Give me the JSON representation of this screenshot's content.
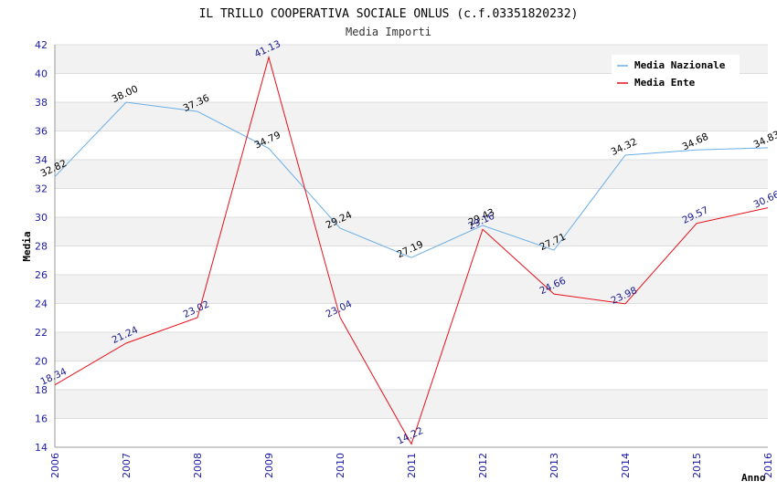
{
  "chart_data": {
    "type": "line",
    "title": "IL TRILLO COOPERATIVA SOCIALE ONLUS (c.f.03351820232)",
    "subtitle": "Media Importi",
    "xlabel": "Anno",
    "ylabel": "Media",
    "x": [
      "2006",
      "2007",
      "2008",
      "2009",
      "2010",
      "2011",
      "2012",
      "2013",
      "2014",
      "2015",
      "2016"
    ],
    "ylim": [
      14,
      42
    ],
    "yticks": [
      "14",
      "16",
      "18",
      "20",
      "22",
      "24",
      "26",
      "28",
      "30",
      "32",
      "34",
      "36",
      "38",
      "40",
      "42"
    ],
    "legend_position": "top-right",
    "series": [
      {
        "name": "Media Nazionale",
        "color": "#6aaee8",
        "values": [
          32.82,
          38.0,
          37.36,
          34.79,
          29.24,
          27.19,
          29.43,
          27.71,
          34.32,
          34.68,
          34.83
        ],
        "labels": [
          "32.82",
          "38.00",
          "37.36",
          "34.79",
          "29.24",
          "27.19",
          "29.43",
          "27.71",
          "34.32",
          "34.68",
          "34.83"
        ]
      },
      {
        "name": "Media Ente",
        "color": "#e8101a",
        "values": [
          18.34,
          21.24,
          23.02,
          41.13,
          23.04,
          14.22,
          29.16,
          24.66,
          23.98,
          29.57,
          30.66
        ],
        "labels": [
          "18.34",
          "21.24",
          "23.02",
          "41.13",
          "23.04",
          "14.22",
          "29.16",
          "24.66",
          "23.98",
          "29.57",
          "30.66"
        ]
      }
    ]
  }
}
